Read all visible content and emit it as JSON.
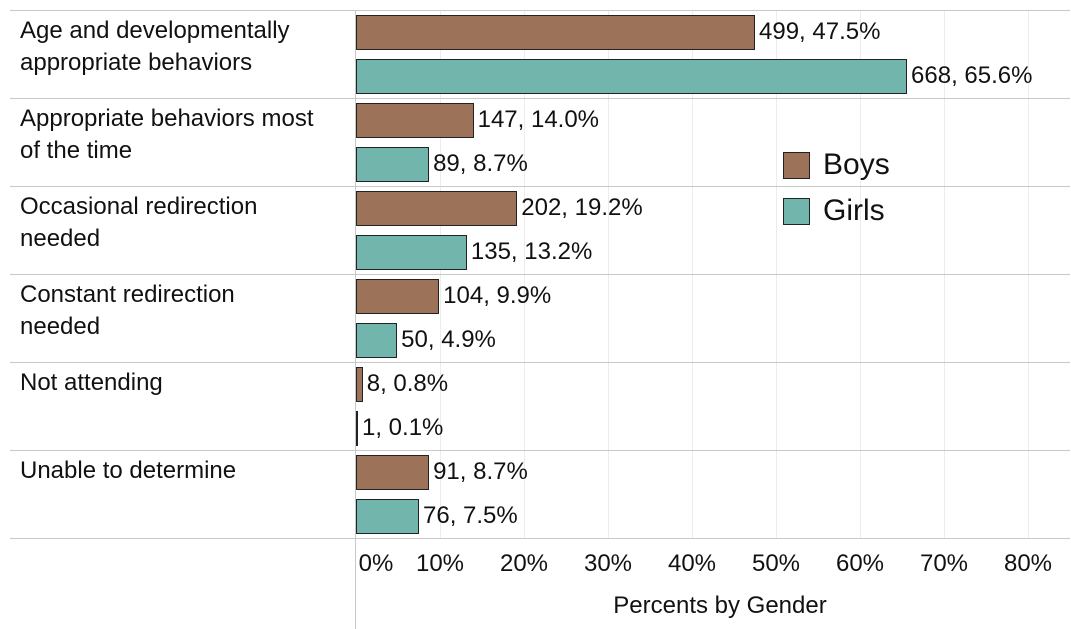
{
  "chart_data": {
    "type": "barh",
    "categories": [
      "Age and developmentally appropriate behaviors",
      "Appropriate behaviors most of the time",
      "Occasional redirection needed",
      "Constant redirection needed",
      "Not attending",
      "Unable to determine"
    ],
    "series": [
      {
        "name": "Boys",
        "color": "#9c7259",
        "values": [
          47.5,
          14.0,
          19.2,
          9.9,
          0.8,
          8.7
        ],
        "value_labels": [
          "499, 47.5%",
          "147, 14.0%",
          "202, 19.2%",
          "104, 9.9%",
          "8, 0.8%",
          "91, 8.7%"
        ]
      },
      {
        "name": "Girls",
        "color": "#72b5ac",
        "values": [
          65.6,
          8.7,
          13.2,
          4.9,
          0.1,
          7.5
        ],
        "value_labels": [
          "668, 65.6%",
          "89, 8.7%",
          "135, 13.2%",
          "50, 4.9%",
          "1, 0.1%",
          "76, 7.5%"
        ]
      }
    ],
    "x_label": "Percents by Gender",
    "xlim": [
      0,
      85
    ],
    "xticks": [
      {
        "value": 0,
        "label": "0%"
      },
      {
        "value": 10,
        "label": "10%"
      },
      {
        "value": 20,
        "label": "20%"
      },
      {
        "value": 30,
        "label": "30%"
      },
      {
        "value": 40,
        "label": "40%"
      },
      {
        "value": 50,
        "label": "50%"
      },
      {
        "value": 60,
        "label": "60%"
      },
      {
        "value": 70,
        "label": "70%"
      },
      {
        "value": 80,
        "label": "80%"
      }
    ],
    "grid": true,
    "legend": "upper right"
  }
}
